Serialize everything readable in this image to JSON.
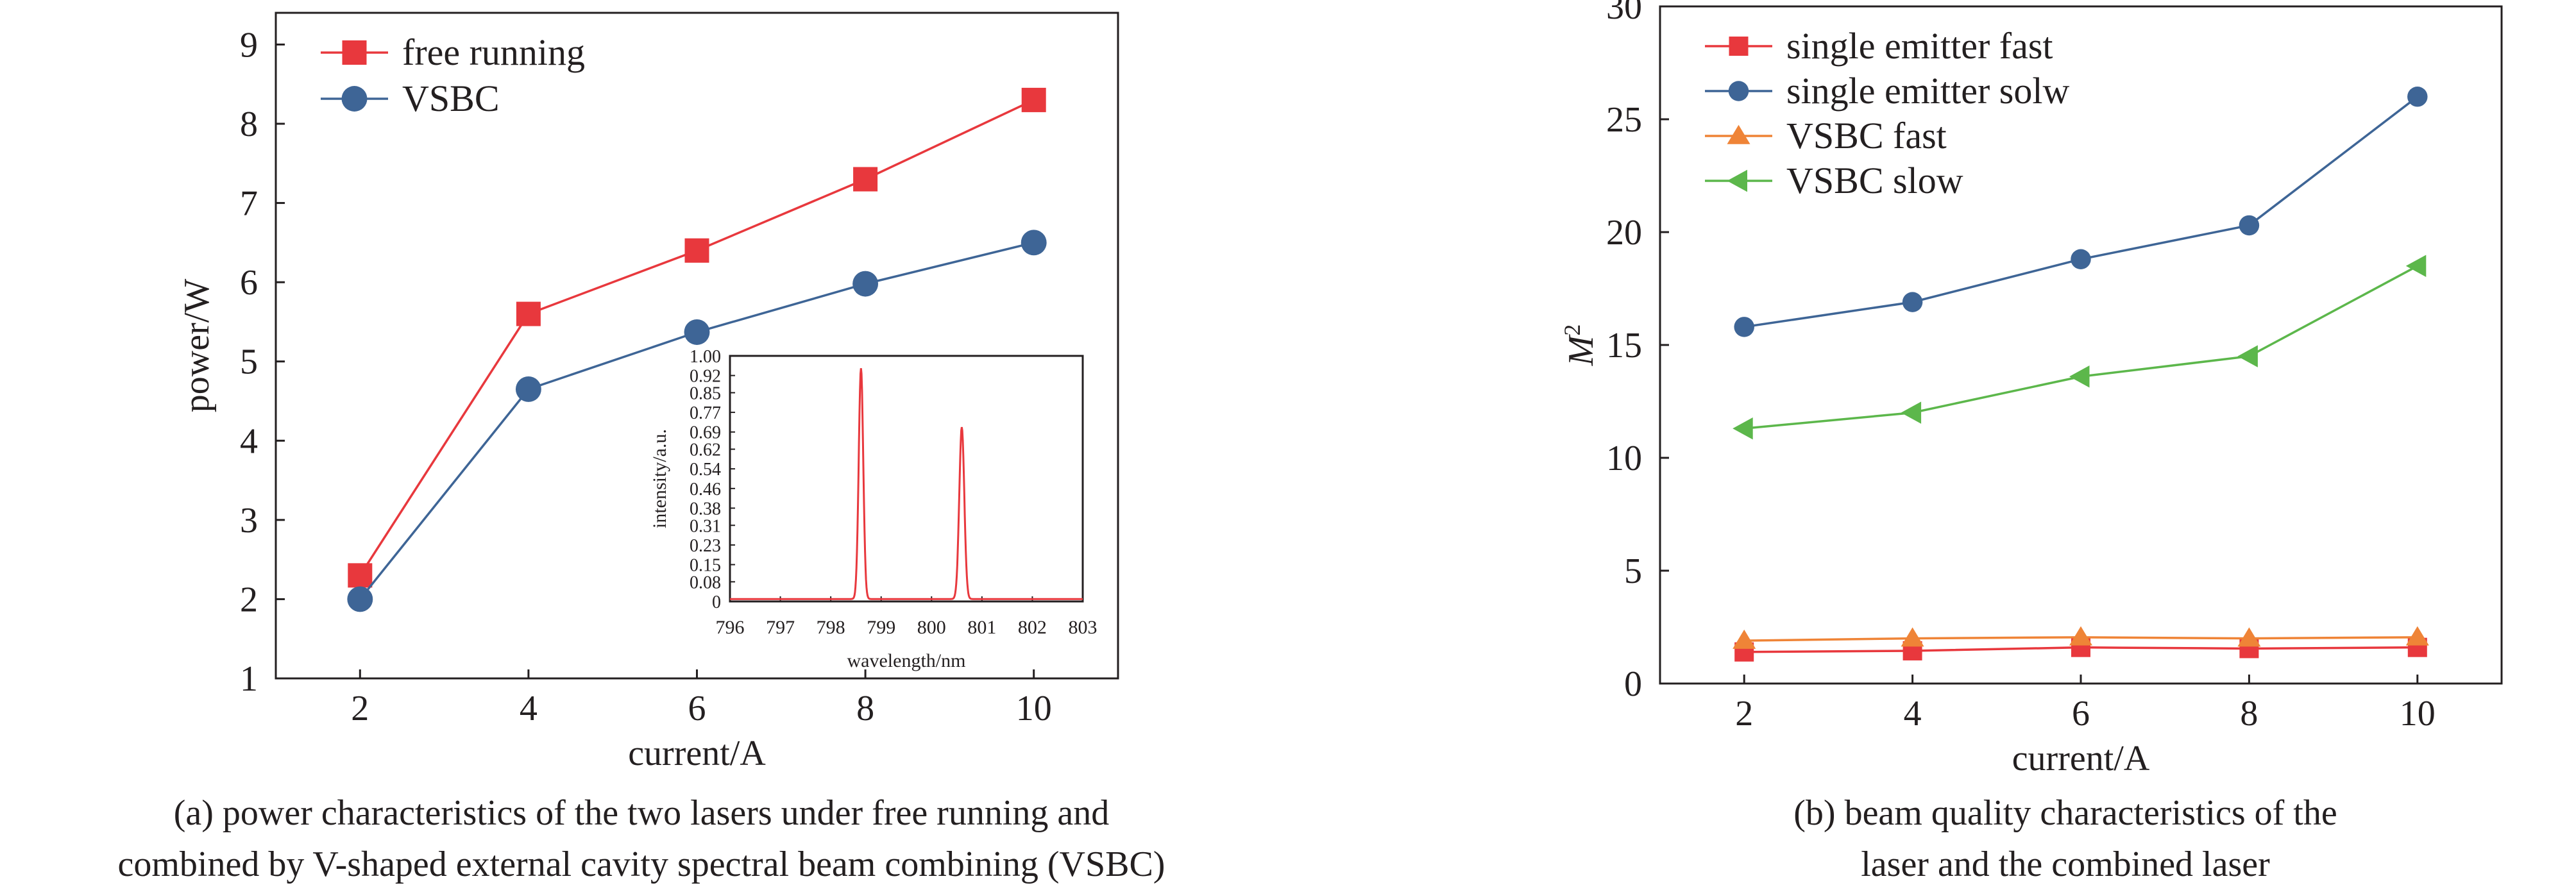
{
  "chart_data": [
    {
      "type": "line",
      "xlabel": "current/A",
      "ylabel": "power/W",
      "xlim": [
        1,
        11
      ],
      "ylim": [
        1,
        9.4
      ],
      "xticks": [
        "2",
        "4",
        "6",
        "8",
        "10"
      ],
      "yticks": [
        "1",
        "2",
        "3",
        "4",
        "5",
        "6",
        "7",
        "8",
        "9"
      ],
      "legend_position": "top-left",
      "caption": [
        "(a) power characteristics of the two lasers under free running and",
        "combined by V-shaped external cavity spectral beam combining (VSBC)"
      ],
      "series": [
        {
          "name": "free running",
          "marker": "square",
          "color": "#e8383d",
          "x": [
            2,
            4,
            6,
            8,
            10
          ],
          "y": [
            2.3,
            5.6,
            6.4,
            7.3,
            8.3
          ]
        },
        {
          "name": "VSBC",
          "marker": "circle",
          "color": "#3e6596",
          "x": [
            2,
            4,
            6,
            8,
            10
          ],
          "y": [
            2.0,
            4.65,
            5.37,
            5.98,
            6.5
          ]
        }
      ],
      "inset": {
        "type": "line",
        "xlabel": "wavelength/nm",
        "ylabel": "intensity/a.u.",
        "xlim": [
          796,
          803
        ],
        "ylim": [
          0,
          1.0
        ],
        "xticks": [
          "796",
          "797",
          "798",
          "799",
          "800",
          "801",
          "802",
          "803"
        ],
        "yticks": [
          "0",
          "0.08",
          "0.15",
          "0.23",
          "0.31",
          "0.38",
          "0.46",
          "0.54",
          "0.62",
          "0.69",
          "0.77",
          "0.85",
          "0.92",
          "1.00"
        ],
        "color": "#e8383d",
        "baseline": 0.01,
        "peaks": [
          {
            "center": 798.6,
            "height": 0.94,
            "width": 0.045
          },
          {
            "center": 800.6,
            "height": 0.7,
            "width": 0.05
          }
        ]
      }
    },
    {
      "type": "line",
      "xlabel": "current/A",
      "ylabel": "M²",
      "xlim": [
        1,
        11
      ],
      "ylim": [
        0,
        30
      ],
      "xticks": [
        "2",
        "4",
        "6",
        "8",
        "10"
      ],
      "yticks": [
        "0",
        "5",
        "10",
        "15",
        "20",
        "25",
        "30"
      ],
      "legend_position": "top-left",
      "caption": [
        "(b) beam quality characteristics of the",
        "laser and the combined laser"
      ],
      "series": [
        {
          "name": "single emitter fast",
          "marker": "square",
          "color": "#e8383d",
          "x": [
            2,
            4,
            6,
            8,
            10
          ],
          "y": [
            1.4,
            1.45,
            1.6,
            1.55,
            1.6
          ]
        },
        {
          "name": "single emitter solw",
          "marker": "circle",
          "color": "#3e6596",
          "x": [
            2,
            4,
            6,
            8,
            10
          ],
          "y": [
            15.8,
            16.9,
            18.8,
            20.3,
            26.0
          ]
        },
        {
          "name": "VSBC fast",
          "marker": "triangle-up",
          "color": "#ef8437",
          "x": [
            2,
            4,
            6,
            8,
            10
          ],
          "y": [
            1.9,
            2.0,
            2.05,
            2.0,
            2.05
          ]
        },
        {
          "name": "VSBC slow",
          "marker": "triangle-left",
          "color": "#5cb74b",
          "x": [
            2,
            4,
            6,
            8,
            10
          ],
          "y": [
            11.3,
            12.0,
            13.6,
            14.5,
            18.5
          ]
        }
      ]
    }
  ]
}
